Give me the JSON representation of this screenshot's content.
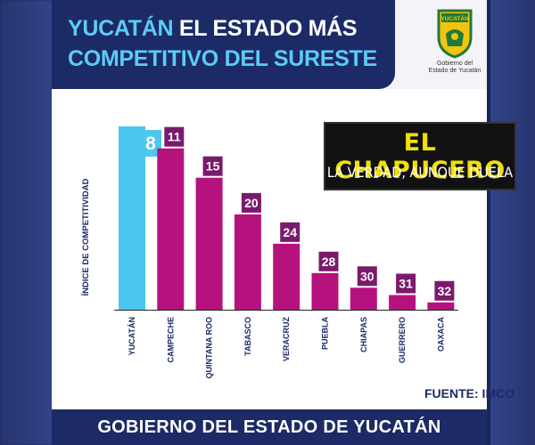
{
  "header": {
    "title_part1": "YUCATÁN",
    "title_part2": " EL ESTADO MÁS",
    "title_line2": "COMPETITIVO DEL SURESTE"
  },
  "logo": {
    "emblem_text": "YUCATÁN",
    "line1": "Gobierno del",
    "line2": "Estado de Yucatán"
  },
  "watermark": {
    "title": "EL CHAPUCERO",
    "subtitle": "LA VERDAD, AUNQUE DUELA"
  },
  "footer": {
    "text": "GOBIERNO DEL ESTADO DE YUCATÁN"
  },
  "source": "FUENTE: IMCO",
  "colors": {
    "navy": "#1c2a66",
    "highlight": "#4cc8f0",
    "bar": "#b5127d",
    "label_box": "#7a1a6c"
  },
  "chart_data": {
    "type": "bar",
    "ylabel": "ÍNDICE DE COMPETITIVIDAD",
    "xlabel": "",
    "categories": [
      "YUCATÁN",
      "CAMPECHE",
      "QUINTANA ROO",
      "TABASCO",
      "VERACRUZ",
      "PUEBLA",
      "CHIAPAS",
      "GUERRERO",
      "OAXACA"
    ],
    "values": [
      8,
      11,
      15,
      20,
      24,
      28,
      30,
      31,
      32
    ],
    "highlighted": "YUCATÁN",
    "inverted_scale": true,
    "grid": false
  }
}
